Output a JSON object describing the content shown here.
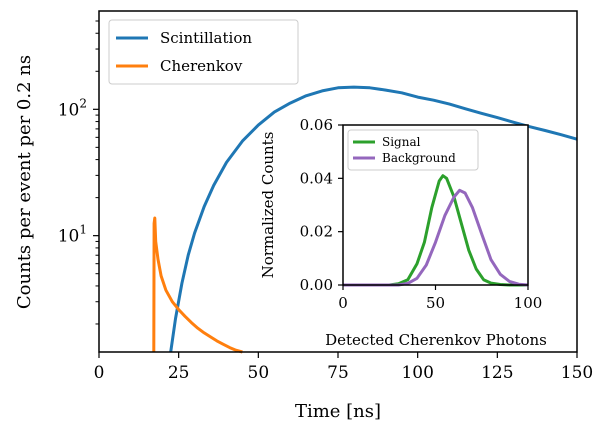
{
  "chart_data": [
    {
      "type": "line",
      "xlabel": "Time [ns]",
      "ylabel": "Counts per event per 0.2 ns",
      "xlim": [
        0,
        150
      ],
      "ylim": [
        1.2,
        600
      ],
      "yscale": "log",
      "grid": false,
      "legend_position": "top-left",
      "x_ticks": [
        "0",
        "25",
        "50",
        "75",
        "100",
        "125",
        "150"
      ],
      "y_ticks": [
        {
          "value": 10,
          "label": "10",
          "exp": "1"
        },
        {
          "value": 100,
          "label": "10",
          "exp": "2"
        }
      ],
      "series": [
        {
          "name": "Scintillation",
          "color": "#1f77b4",
          "x": [
            22.5,
            24,
            26,
            28,
            30,
            33,
            36,
            40,
            45,
            50,
            55,
            60,
            65,
            70,
            75,
            80,
            85,
            90,
            95,
            100,
            105,
            110,
            115,
            120,
            125,
            130,
            135,
            140,
            145,
            150
          ],
          "y": [
            1.2,
            2.2,
            4.2,
            7,
            10.5,
            17,
            25,
            38,
            56,
            75,
            95,
            112,
            128,
            140,
            148,
            150,
            148,
            142,
            135,
            125,
            118,
            110,
            101,
            93,
            86,
            79,
            73,
            68,
            63,
            58
          ]
        },
        {
          "name": "Cherenkov",
          "color": "#ff7f0e",
          "x": [
            17.2,
            17.3,
            17.5,
            17.8,
            18.5,
            19.5,
            21,
            23,
            25,
            27,
            29,
            31,
            33,
            35,
            37,
            39,
            41,
            43,
            45
          ],
          "y": [
            1.2,
            12.5,
            13.8,
            9,
            6.5,
            4.8,
            3.7,
            3.0,
            2.6,
            2.3,
            2.05,
            1.85,
            1.7,
            1.58,
            1.47,
            1.38,
            1.3,
            1.24,
            1.2
          ]
        }
      ]
    },
    {
      "type": "line",
      "xlabel": "Detected Cherenkov Photons",
      "ylabel": "Normalized Counts",
      "xlim": [
        0,
        100
      ],
      "ylim": [
        0,
        0.06
      ],
      "grid": false,
      "legend_position": "top-left",
      "x_ticks": [
        "0",
        "50",
        "100"
      ],
      "y_ticks": [
        {
          "value": 0,
          "label": "0.00"
        },
        {
          "value": 0.02,
          "label": "0.02"
        },
        {
          "value": 0.04,
          "label": "0.04"
        },
        {
          "value": 0.06,
          "label": "0.06"
        }
      ],
      "series": [
        {
          "name": "Signal",
          "color": "#2ca02c",
          "x": [
            0,
            25,
            30,
            35,
            40,
            44,
            48,
            52,
            54,
            56,
            60,
            64,
            68,
            72,
            76,
            80,
            85,
            90,
            100
          ],
          "y": [
            0,
            0,
            0.0005,
            0.002,
            0.008,
            0.016,
            0.029,
            0.039,
            0.041,
            0.04,
            0.033,
            0.023,
            0.013,
            0.006,
            0.002,
            0.0007,
            0.0002,
            0,
            0
          ]
        },
        {
          "name": "Background",
          "color": "#9467bd",
          "x": [
            0,
            30,
            35,
            40,
            45,
            50,
            55,
            60,
            63,
            66,
            70,
            75,
            80,
            85,
            90,
            95,
            100
          ],
          "y": [
            0,
            0,
            0.0006,
            0.0025,
            0.0075,
            0.016,
            0.026,
            0.033,
            0.0355,
            0.0345,
            0.029,
            0.019,
            0.0095,
            0.004,
            0.0013,
            0.0003,
            0
          ]
        }
      ]
    }
  ]
}
